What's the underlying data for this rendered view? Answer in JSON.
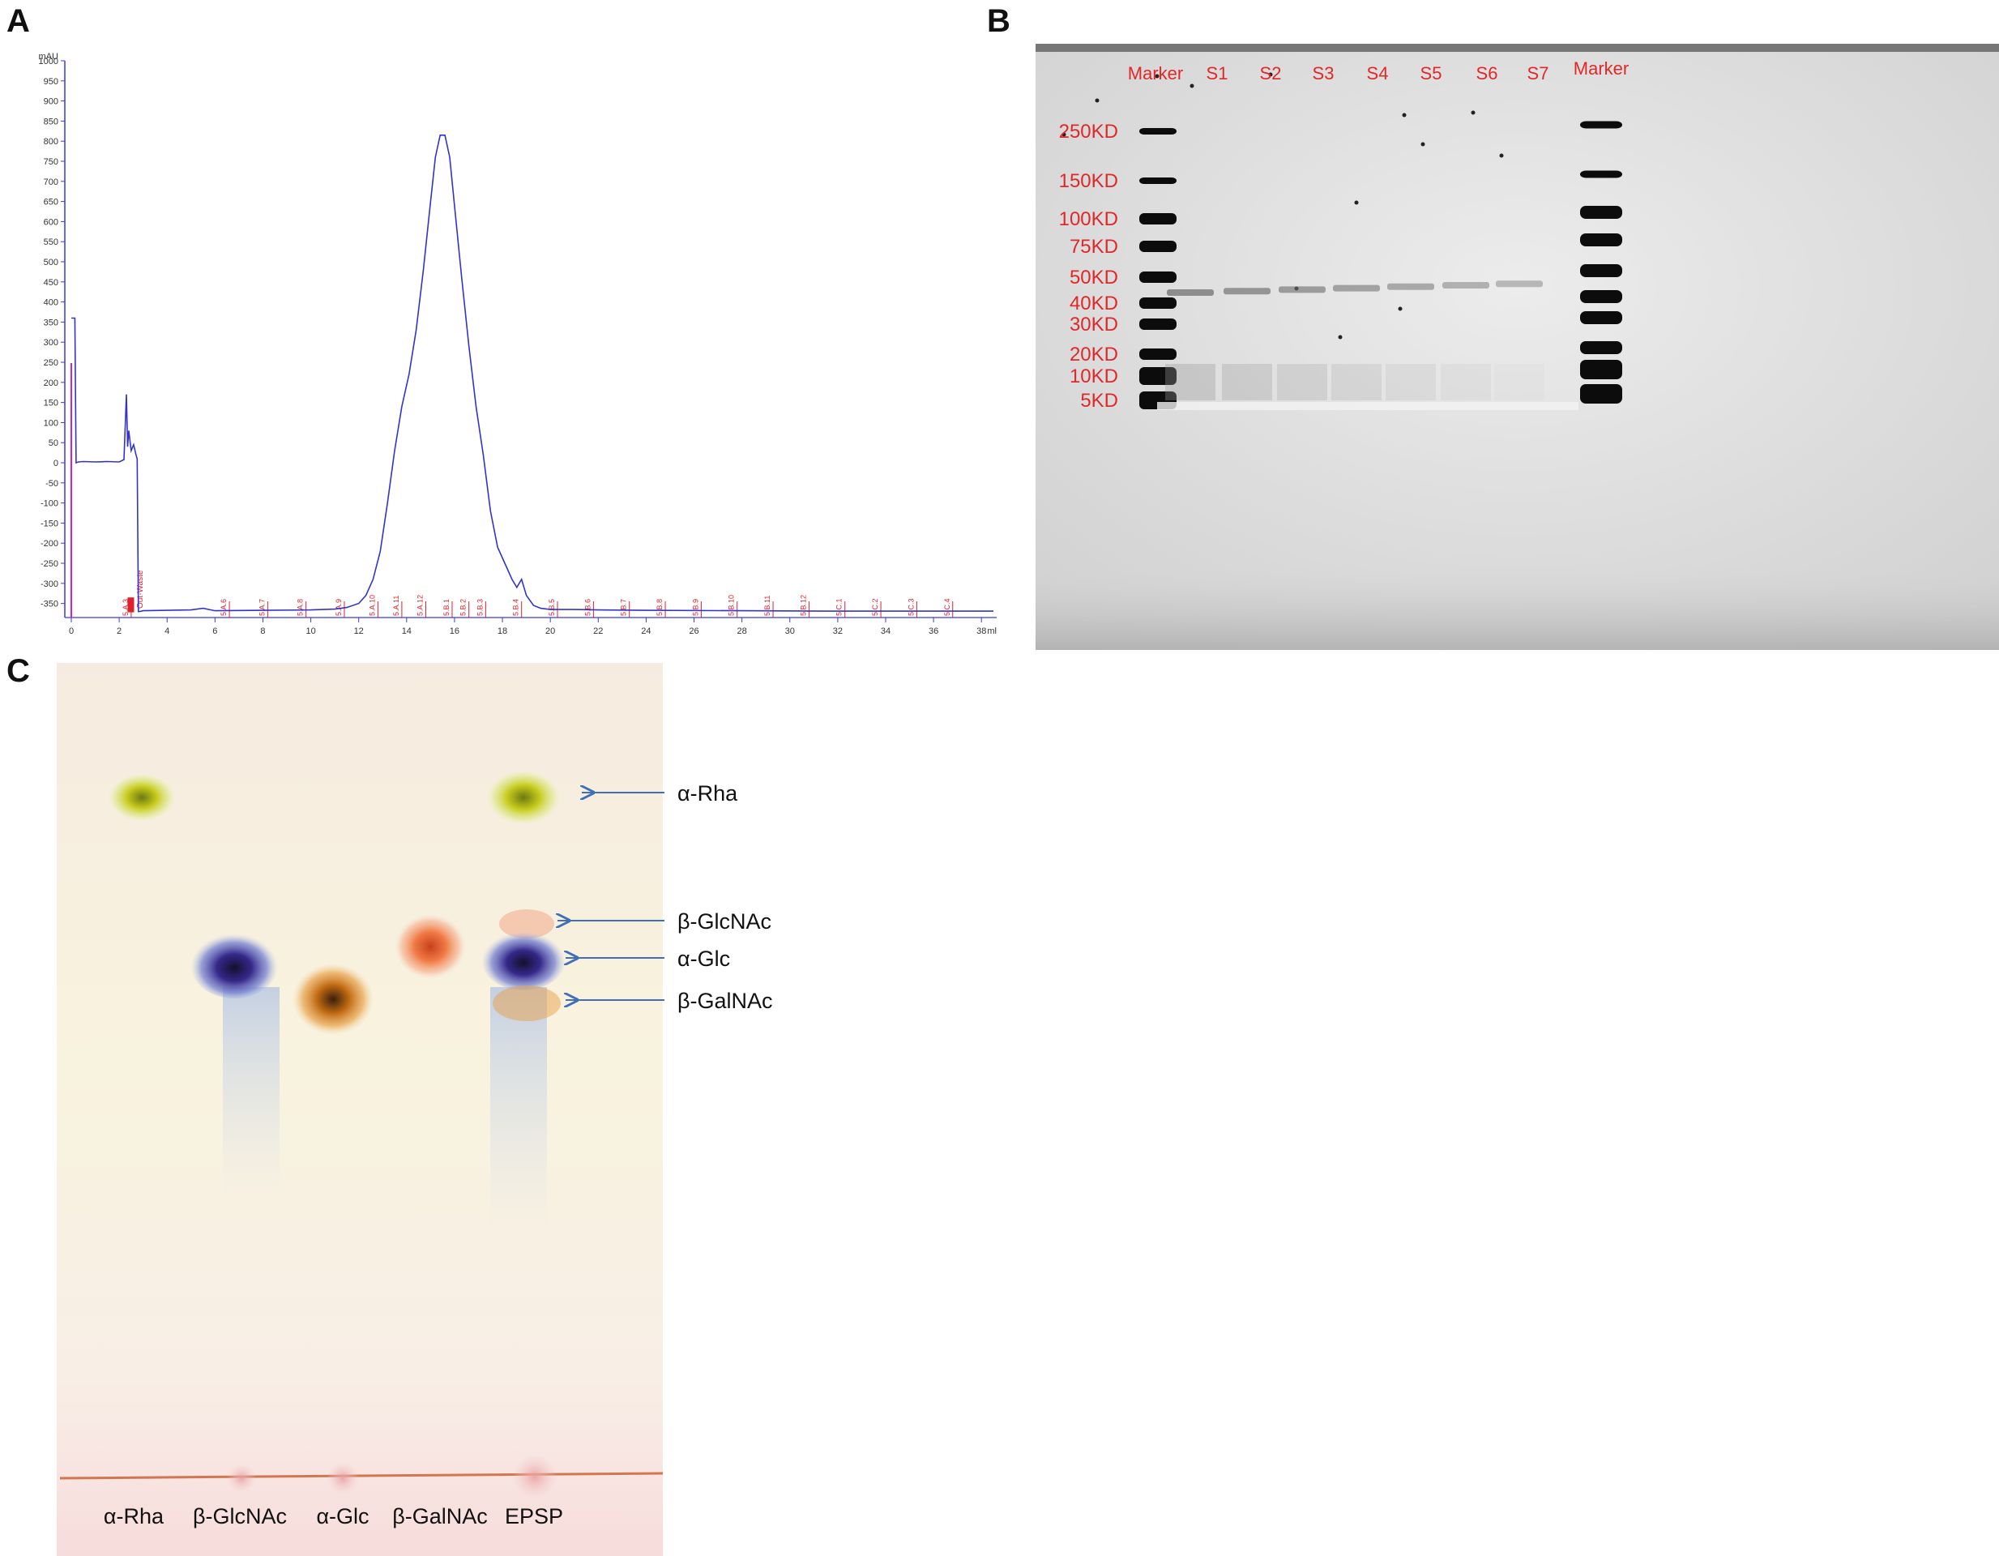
{
  "panels": {
    "a": "A",
    "b": "B",
    "c": "C"
  },
  "panelA": {
    "y_unit": "mAU",
    "x_unit": "ml",
    "y_ticks": [
      1000,
      950,
      900,
      850,
      800,
      750,
      700,
      650,
      600,
      550,
      500,
      450,
      400,
      350,
      300,
      250,
      200,
      150,
      100,
      50,
      0,
      -50,
      -100,
      -150,
      -200,
      -250,
      -300,
      -350
    ],
    "x_ticks": [
      0,
      2,
      4,
      6,
      8,
      10,
      12,
      14,
      16,
      18,
      20,
      22,
      24,
      26,
      28,
      30,
      32,
      34,
      36,
      38
    ],
    "fraction_labels": [
      {
        "x": 2.5,
        "label": "5.A.3"
      },
      {
        "x": 6.6,
        "label": "5.A.6"
      },
      {
        "x": 8.2,
        "label": "5.A.7"
      },
      {
        "x": 9.8,
        "label": "5.A.8"
      },
      {
        "x": 11.4,
        "label": "5.A.9"
      },
      {
        "x": 12.8,
        "label": "5.A.10"
      },
      {
        "x": 13.8,
        "label": "5.A.11"
      },
      {
        "x": 14.8,
        "label": "5.A.12"
      },
      {
        "x": 15.9,
        "label": "5.B.1"
      },
      {
        "x": 16.6,
        "label": "5.B.2"
      },
      {
        "x": 17.3,
        "label": "5.B.3"
      },
      {
        "x": 18.8,
        "label": "5.B.4"
      },
      {
        "x": 20.3,
        "label": "5.B.5"
      },
      {
        "x": 21.8,
        "label": "5.B.6"
      },
      {
        "x": 23.3,
        "label": "5.B.7"
      },
      {
        "x": 24.8,
        "label": "5.B.8"
      },
      {
        "x": 26.3,
        "label": "5.B.9"
      },
      {
        "x": 27.8,
        "label": "5.B.10"
      },
      {
        "x": 29.3,
        "label": "5.B.11"
      },
      {
        "x": 30.8,
        "label": "5.B.12"
      },
      {
        "x": 32.3,
        "label": "5.C.1"
      },
      {
        "x": 33.8,
        "label": "5.C.2"
      },
      {
        "x": 35.3,
        "label": "5.C.3"
      },
      {
        "x": 36.8,
        "label": "5.C.4"
      }
    ],
    "waste_label": "Out-Waste"
  },
  "chart_data": {
    "type": "line",
    "title": "",
    "xlabel": "ml",
    "ylabel": "mAU",
    "xlim": [
      0,
      38.5
    ],
    "ylim": [
      -385,
      1000
    ],
    "grid": false,
    "series": [
      {
        "x": [
          0,
          0.05,
          0.15,
          0.2,
          0.3,
          0.5,
          1.0,
          1.5,
          2.0,
          2.2,
          2.3,
          2.35,
          2.4,
          2.5,
          2.6,
          2.7,
          2.75,
          2.8,
          2.85,
          3.0,
          4.0,
          5.0,
          5.5,
          6.0,
          8.0,
          10.0,
          11.0,
          11.5,
          12.0,
          12.3,
          12.6,
          12.9,
          13.2,
          13.5,
          13.8,
          14.1,
          14.4,
          14.7,
          15.0,
          15.2,
          15.4,
          15.6,
          15.8,
          16.0,
          16.3,
          16.6,
          16.9,
          17.2,
          17.5,
          17.8,
          18.1,
          18.4,
          18.6,
          18.8,
          19.0,
          19.3,
          19.6,
          20.0,
          21.0,
          22.0,
          24.0,
          28.0,
          32.0,
          36.0,
          38.5
        ],
        "y": [
          360,
          360,
          360,
          0,
          2,
          3,
          2,
          3,
          2,
          8,
          170,
          40,
          80,
          30,
          45,
          20,
          10,
          -370,
          -370,
          -368,
          -367,
          -366,
          -362,
          -368,
          -367,
          -366,
          -364,
          -360,
          -350,
          -330,
          -290,
          -220,
          -100,
          30,
          140,
          220,
          330,
          480,
          650,
          760,
          815,
          815,
          760,
          640,
          460,
          290,
          140,
          20,
          -120,
          -210,
          -250,
          -290,
          -310,
          -290,
          -330,
          -355,
          -362,
          -365,
          -365,
          -366,
          -367,
          -368,
          -369,
          -369,
          -369
        ]
      }
    ]
  },
  "panelB": {
    "lane_labels": [
      "Marker",
      "S1",
      "S2",
      "S3",
      "S4",
      "S5",
      "S6",
      "S7",
      "Marker"
    ],
    "mw_labels": [
      {
        "label": "250KD",
        "kd": 250
      },
      {
        "label": "150KD",
        "kd": 150
      },
      {
        "label": "100KD",
        "kd": 100
      },
      {
        "label": "75KD",
        "kd": 75
      },
      {
        "label": "50KD",
        "kd": 50
      },
      {
        "label": "40KD",
        "kd": 40
      },
      {
        "label": "30KD",
        "kd": 30
      },
      {
        "label": "20KD",
        "kd": 20
      },
      {
        "label": "10KD",
        "kd": 10
      },
      {
        "label": "5KD",
        "kd": 5
      }
    ]
  },
  "panelC": {
    "lane_labels": [
      "α-Rha",
      "β-GlcNAc",
      "α-Glc",
      "β-GalNAc",
      "EPSP"
    ],
    "annotations": [
      "α-Rha",
      "β-GlcNAc",
      "α-Glc",
      "β-GalNAc"
    ],
    "colors": {
      "rha": "#c9c21a",
      "glcnac": "#3a2a8a",
      "glc": "#c9700f",
      "galnac": "#ef6f3e",
      "arrow": "#3e6fb8"
    }
  }
}
